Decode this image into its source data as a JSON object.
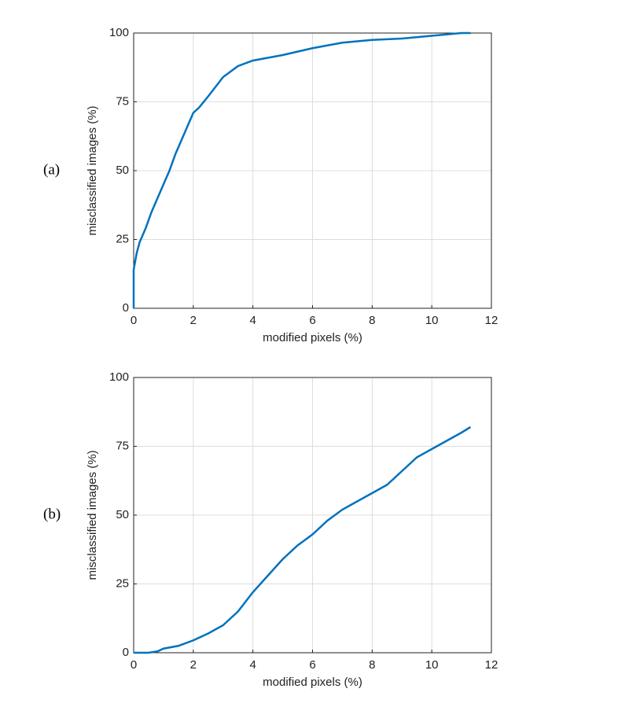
{
  "chart_data": [
    {
      "type": "line",
      "panel_label": "(a)",
      "xlabel": "modified pixels (%)",
      "ylabel": "misclassified images (%)",
      "x": [
        0,
        0,
        0.05,
        0.1,
        0.2,
        0.4,
        0.6,
        0.8,
        1.0,
        1.2,
        1.4,
        1.6,
        1.8,
        2.0,
        2.2,
        2.5,
        3.0,
        3.5,
        4.0,
        4.5,
        5,
        6,
        7,
        8,
        9,
        10,
        11,
        11.3
      ],
      "values": [
        0,
        14,
        17,
        20,
        24,
        29,
        35,
        40,
        45,
        50,
        56,
        61,
        66,
        71,
        73,
        77,
        84,
        88,
        90,
        91,
        92,
        94.5,
        96.5,
        97.5,
        98,
        99,
        100,
        100
      ],
      "color": "#0072bd",
      "xlim": [
        0,
        12
      ],
      "ylim": [
        0,
        100
      ],
      "xticks": [
        0,
        2,
        4,
        6,
        8,
        10,
        12
      ],
      "yticks": [
        0,
        25,
        50,
        75,
        100
      ],
      "grid": true
    },
    {
      "type": "line",
      "panel_label": "(b)",
      "xlabel": "modified pixels (%)",
      "ylabel": "misclassified images (%)",
      "x": [
        0,
        0.5,
        0.8,
        1,
        1.5,
        2,
        2.5,
        3,
        3.5,
        4,
        4.5,
        5,
        5.5,
        6,
        6.5,
        7,
        7.5,
        8,
        8.5,
        9,
        9.5,
        10,
        10.5,
        11,
        11.3
      ],
      "values": [
        0,
        0,
        0.5,
        1.5,
        2.5,
        4.5,
        7,
        10,
        15,
        22,
        28,
        34,
        39,
        43,
        48,
        52,
        55,
        58,
        61,
        66,
        71,
        74,
        77,
        80,
        82
      ],
      "color": "#0072bd",
      "xlim": [
        0,
        12
      ],
      "ylim": [
        0,
        100
      ],
      "xticks": [
        0,
        2,
        4,
        6,
        8,
        10,
        12
      ],
      "yticks": [
        0,
        25,
        50,
        75,
        100
      ],
      "grid": true
    }
  ]
}
